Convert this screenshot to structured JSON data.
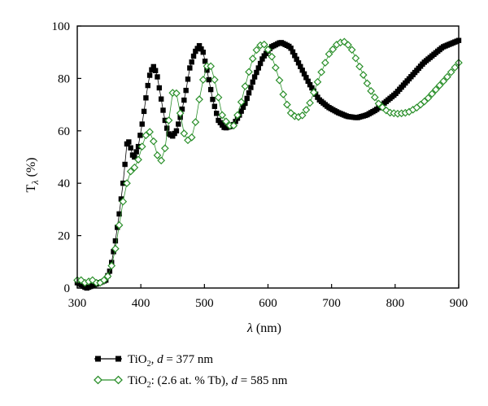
{
  "chart_data": {
    "type": "scatter",
    "xlabel": {
      "main": "λ",
      "unit": " (nm)"
    },
    "ylabel": {
      "main": "T",
      "sub": "λ",
      "unit": " (%)"
    },
    "xlim": [
      300,
      900
    ],
    "ylim": [
      0,
      100
    ],
    "xticks": [
      300,
      400,
      500,
      600,
      700,
      800,
      900
    ],
    "yticks": [
      0,
      20,
      40,
      60,
      80,
      100
    ],
    "grid": false,
    "legend_position": "below",
    "series": [
      {
        "name_parts": [
          "TiO",
          "2",
          ", ",
          "d",
          " = 377 nm"
        ],
        "color": "#000000",
        "marker": "filled-square",
        "x_range": [
          300,
          900
        ],
        "x_step": 3,
        "points": [
          [
            300,
            2
          ],
          [
            305,
            1.5
          ],
          [
            310,
            0.5
          ],
          [
            315,
            0
          ],
          [
            325,
            1
          ],
          [
            335,
            2
          ],
          [
            345,
            3
          ],
          [
            352,
            7
          ],
          [
            360,
            18
          ],
          [
            367,
            30
          ],
          [
            373,
            42
          ],
          [
            378,
            55
          ],
          [
            382,
            56
          ],
          [
            386,
            51
          ],
          [
            390,
            50
          ],
          [
            396,
            54
          ],
          [
            403,
            64
          ],
          [
            410,
            76
          ],
          [
            415,
            82.5
          ],
          [
            420,
            84.5
          ],
          [
            425,
            82
          ],
          [
            430,
            75
          ],
          [
            437,
            65
          ],
          [
            443,
            59
          ],
          [
            450,
            58
          ],
          [
            456,
            60
          ],
          [
            463,
            66
          ],
          [
            470,
            74
          ],
          [
            477,
            84
          ],
          [
            485,
            90
          ],
          [
            492,
            92.5
          ],
          [
            498,
            90
          ],
          [
            505,
            82
          ],
          [
            513,
            72
          ],
          [
            522,
            64
          ],
          [
            532,
            61
          ],
          [
            545,
            62
          ],
          [
            555,
            66
          ],
          [
            565,
            71
          ],
          [
            578,
            80
          ],
          [
            592,
            88
          ],
          [
            605,
            92
          ],
          [
            620,
            93.8
          ],
          [
            635,
            92
          ],
          [
            650,
            85
          ],
          [
            665,
            78
          ],
          [
            680,
            72
          ],
          [
            695,
            69
          ],
          [
            710,
            67
          ],
          [
            725,
            65.5
          ],
          [
            740,
            65
          ],
          [
            755,
            66
          ],
          [
            770,
            68
          ],
          [
            785,
            71
          ],
          [
            800,
            74
          ],
          [
            815,
            78
          ],
          [
            830,
            82
          ],
          [
            845,
            86
          ],
          [
            860,
            89
          ],
          [
            875,
            92
          ],
          [
            890,
            93.5
          ],
          [
            900,
            94.5
          ]
        ]
      },
      {
        "name_parts": [
          "TiO",
          "2",
          ": (2.6 at. % Tb), ",
          "d",
          " = 585 nm"
        ],
        "color": "#2a8f2a",
        "marker": "open-diamond",
        "x_range": [
          300,
          900
        ],
        "x_step": 6,
        "points": [
          [
            300,
            3
          ],
          [
            306,
            3
          ],
          [
            312,
            2
          ],
          [
            318,
            2.5
          ],
          [
            324,
            3
          ],
          [
            330,
            2
          ],
          [
            336,
            2
          ],
          [
            342,
            3
          ],
          [
            350,
            5
          ],
          [
            358,
            12
          ],
          [
            366,
            24
          ],
          [
            374,
            36
          ],
          [
            382,
            44
          ],
          [
            390,
            46
          ],
          [
            398,
            50
          ],
          [
            405,
            57
          ],
          [
            412,
            60
          ],
          [
            417,
            59
          ],
          [
            424,
            52
          ],
          [
            430,
            48
          ],
          [
            436,
            50
          ],
          [
            442,
            60
          ],
          [
            448,
            72
          ],
          [
            452,
            77
          ],
          [
            458,
            73
          ],
          [
            465,
            62
          ],
          [
            470,
            57
          ],
          [
            477,
            56
          ],
          [
            483,
            59
          ],
          [
            492,
            72
          ],
          [
            500,
            82
          ],
          [
            506,
            86
          ],
          [
            512,
            84
          ],
          [
            520,
            75
          ],
          [
            528,
            66
          ],
          [
            538,
            62
          ],
          [
            546,
            62
          ],
          [
            555,
            68
          ],
          [
            565,
            78
          ],
          [
            575,
            87
          ],
          [
            585,
            92.5
          ],
          [
            595,
            93
          ],
          [
            605,
            89
          ],
          [
            615,
            82
          ],
          [
            625,
            73
          ],
          [
            635,
            67
          ],
          [
            645,
            65
          ],
          [
            655,
            66
          ],
          [
            665,
            70
          ],
          [
            680,
            80
          ],
          [
            695,
            89
          ],
          [
            710,
            93.5
          ],
          [
            720,
            94
          ],
          [
            730,
            92
          ],
          [
            745,
            84
          ],
          [
            760,
            76
          ],
          [
            775,
            70
          ],
          [
            790,
            67
          ],
          [
            805,
            66.5
          ],
          [
            820,
            67
          ],
          [
            835,
            69
          ],
          [
            850,
            72
          ],
          [
            865,
            76
          ],
          [
            880,
            80
          ],
          [
            890,
            83
          ],
          [
            900,
            86
          ]
        ]
      }
    ]
  }
}
